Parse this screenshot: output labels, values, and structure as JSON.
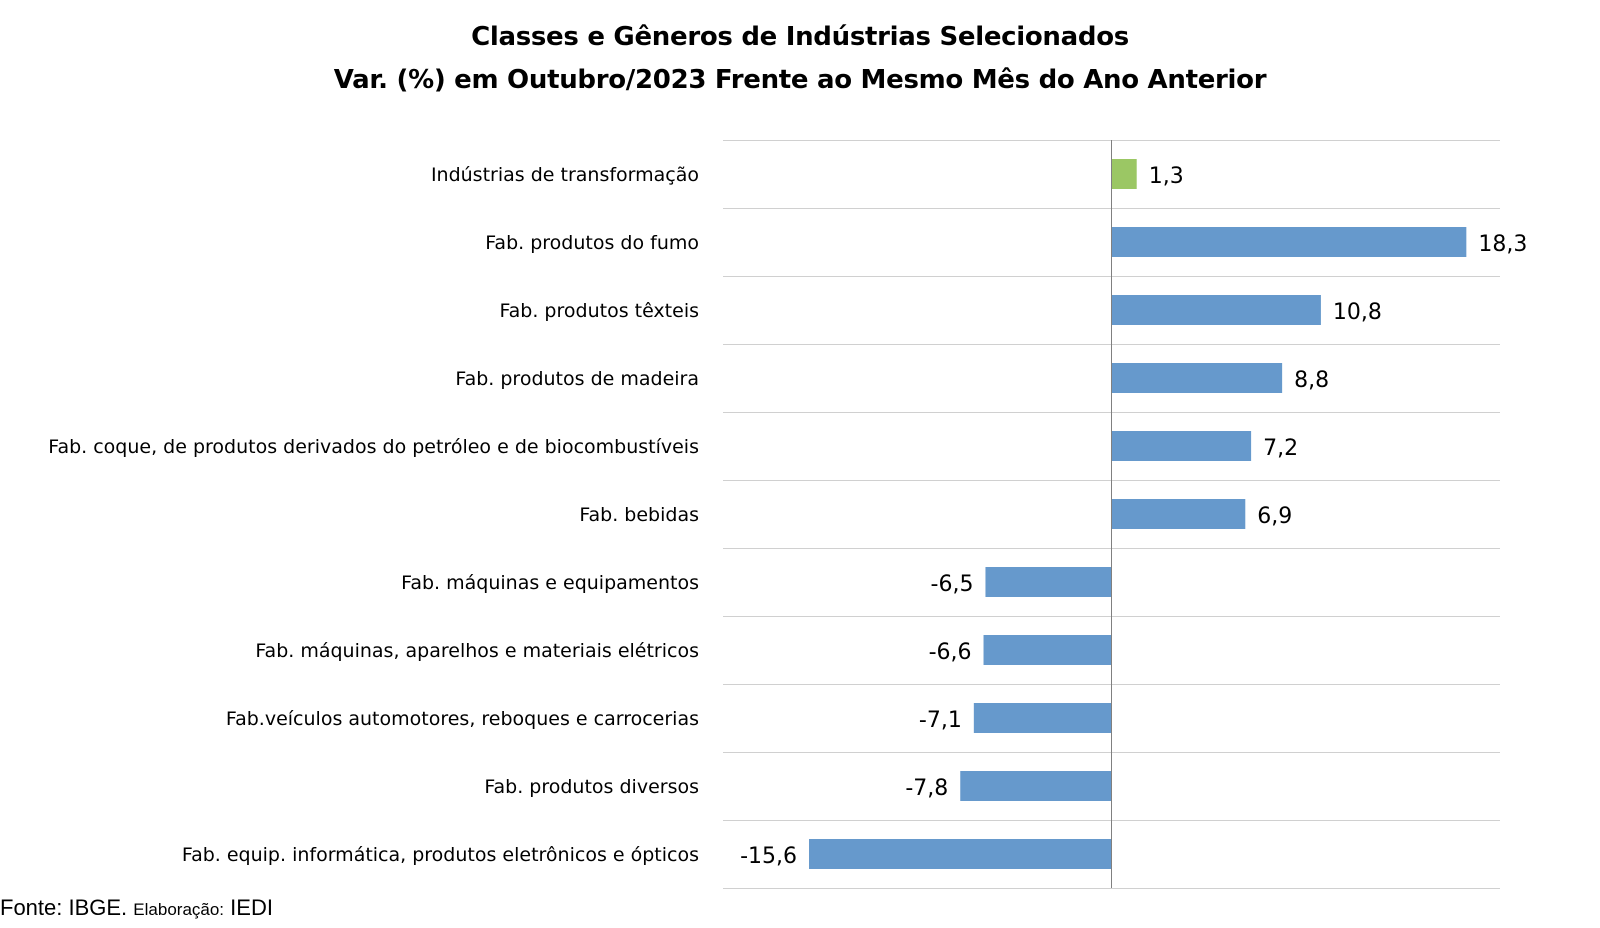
{
  "title_line1": "Classes e Gêneros de Indústrias Selecionados",
  "title_line2": "Var. (%) em Outubro/2023 Frente ao Mesmo Mês do Ano Anterior",
  "source": {
    "fonte_label": "Fonte: IBGE.",
    "elaboracao_label": "Elaboração:",
    "elaboracao_value": "IEDI"
  },
  "colors": {
    "highlight": "#9BC764",
    "bars": "#6699CC",
    "grid": "#D0D0D0",
    "axis": "#808080"
  },
  "chart_data": {
    "type": "bar",
    "orientation": "horizontal",
    "categories": [
      "Indústrias de transformação",
      "Fab. produtos do fumo",
      "Fab. produtos têxteis",
      "Fab. produtos de madeira",
      "Fab. coque, de produtos derivados do petróleo e de biocombustíveis",
      "Fab. bebidas",
      "Fab. máquinas e equipamentos",
      "Fab. máquinas, aparelhos e materiais elétricos",
      "Fab.veículos automotores, reboques e carrocerias",
      "Fab. produtos diversos",
      "Fab. equip. informática, produtos eletrônicos e ópticos"
    ],
    "values": [
      1.3,
      18.3,
      10.8,
      8.8,
      7.2,
      6.9,
      -6.5,
      -6.6,
      -7.1,
      -7.8,
      -15.6
    ],
    "value_labels": [
      "1,3",
      "18,3",
      "10,8",
      "8,8",
      "7,2",
      "6,9",
      "-6,5",
      "-6,6",
      "-7,1",
      "-7,8",
      "-15,6"
    ],
    "highlight_index": 0,
    "xlim": [
      -20,
      20
    ],
    "grid": "horizontal",
    "legend": "none"
  }
}
